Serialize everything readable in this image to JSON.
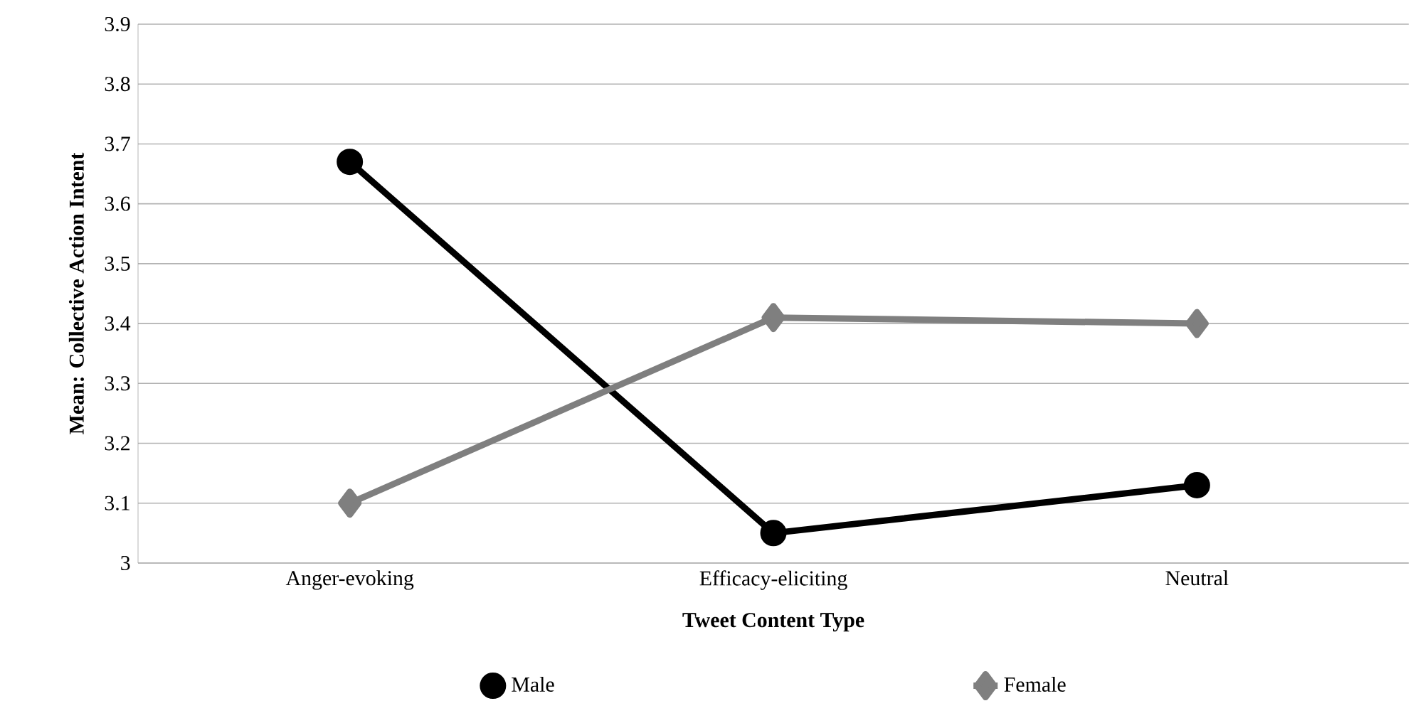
{
  "chart_data": {
    "type": "line",
    "xlabel": "Tweet Content Type",
    "ylabel": "Mean: Collective Action Intent",
    "categories": [
      "Anger-evoking",
      "Efficacy-eliciting",
      "Neutral"
    ],
    "series": [
      {
        "name": "Male",
        "color": "#000000",
        "marker": "circle",
        "values": [
          3.67,
          3.05,
          3.13
        ]
      },
      {
        "name": "Female",
        "color": "#7f7f7f",
        "marker": "diamond",
        "values": [
          3.1,
          3.41,
          3.4
        ]
      }
    ],
    "ylim": [
      3,
      3.9
    ],
    "yticks": [
      3,
      3.1,
      3.2,
      3.3,
      3.4,
      3.5,
      3.6,
      3.7,
      3.8,
      3.9
    ],
    "grid": "y",
    "legend": "bottom",
    "line_style": "solid"
  }
}
